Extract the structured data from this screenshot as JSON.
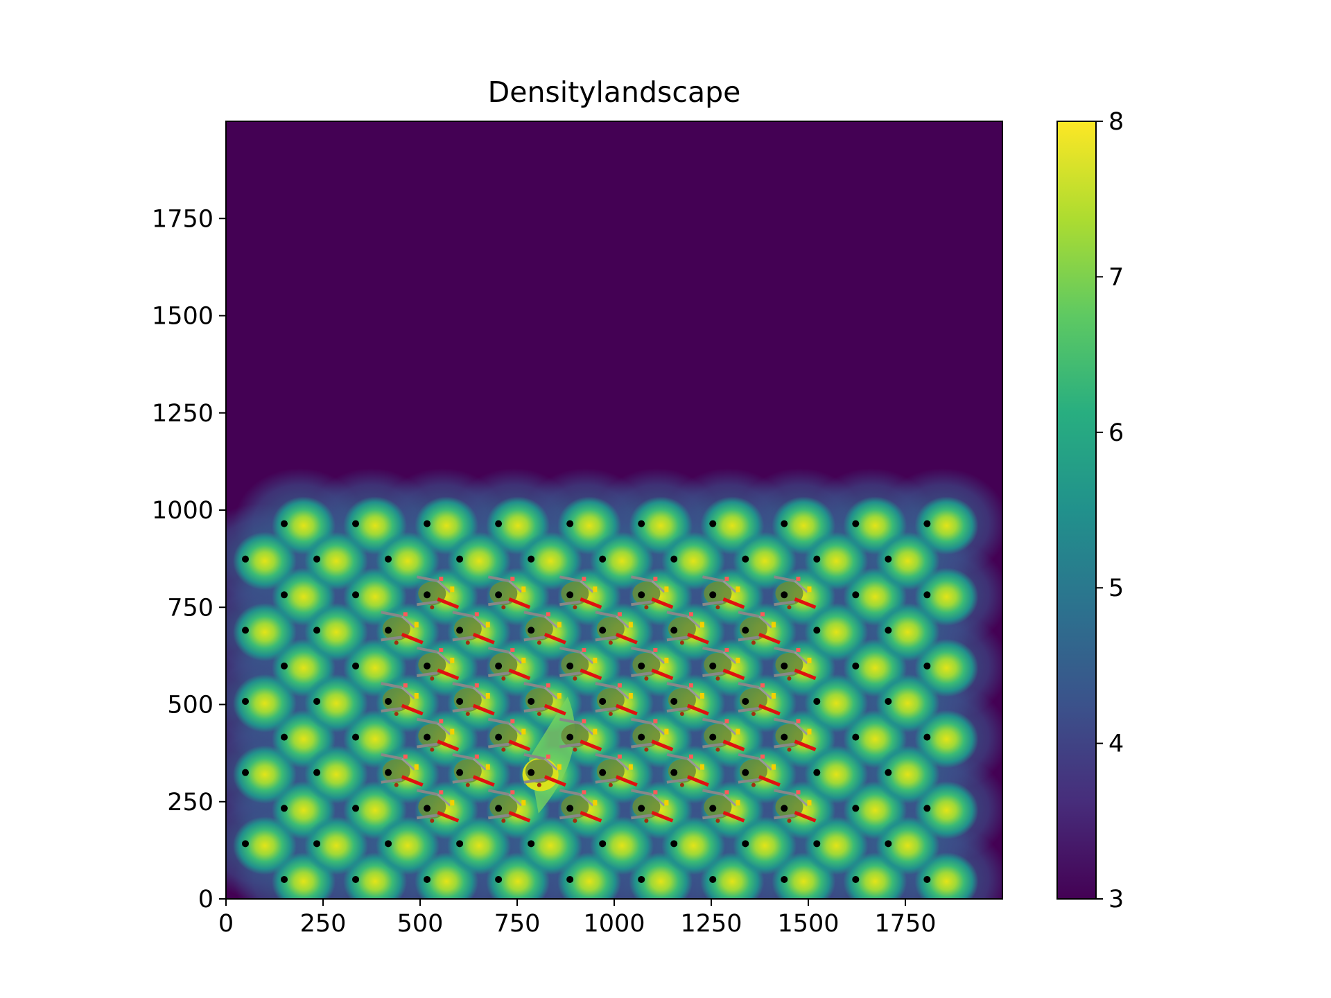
{
  "chart_data": {
    "type": "heatmap",
    "title": "Densitylandscape",
    "xlabel": "",
    "ylabel": "",
    "xlim": [
      0,
      2000
    ],
    "ylim": [
      0,
      2000
    ],
    "xticks": [
      0,
      250,
      500,
      750,
      1000,
      1250,
      1500,
      1750
    ],
    "yticks": [
      0,
      250,
      500,
      750,
      1000,
      1250,
      1500,
      1750
    ],
    "xtick_labels": [
      "0",
      "250",
      "500",
      "750",
      "1000",
      "1250",
      "1500",
      "1750"
    ],
    "ytick_labels": [
      "0",
      "250",
      "500",
      "750",
      "1000",
      "1250",
      "1500",
      "1750"
    ],
    "colorbar": {
      "range": [
        3,
        8
      ],
      "ticks": [
        3,
        4,
        5,
        6,
        7,
        8
      ],
      "tick_labels": [
        "3",
        "4",
        "5",
        "6",
        "7",
        "8"
      ],
      "colormap": "viridis"
    },
    "background_color": "#440154",
    "lattice_points": {
      "description_free": true,
      "odd_rows_x": [
        150,
        334,
        518,
        702,
        886,
        1070,
        1254,
        1438,
        1622,
        1806
      ],
      "odd_rows_y": [
        50,
        233,
        416,
        599,
        782,
        965
      ],
      "even_rows_x": [
        50,
        234,
        418,
        602,
        786,
        970,
        1154,
        1338,
        1522,
        1706
      ],
      "even_rows_y": [
        142,
        325,
        508,
        691,
        874
      ]
    },
    "agents": {
      "cols_x": [
        513,
        697,
        881,
        1065,
        1249,
        1433
      ],
      "rows_y": [
        233,
        416,
        599,
        782
      ],
      "offset_cols_x": [
        421,
        605,
        789,
        973,
        1157,
        1341
      ],
      "offset_rows_y": [
        325,
        508,
        691
      ]
    },
    "highlight": {
      "x": 810,
      "y": 320,
      "value": 7.6
    }
  }
}
